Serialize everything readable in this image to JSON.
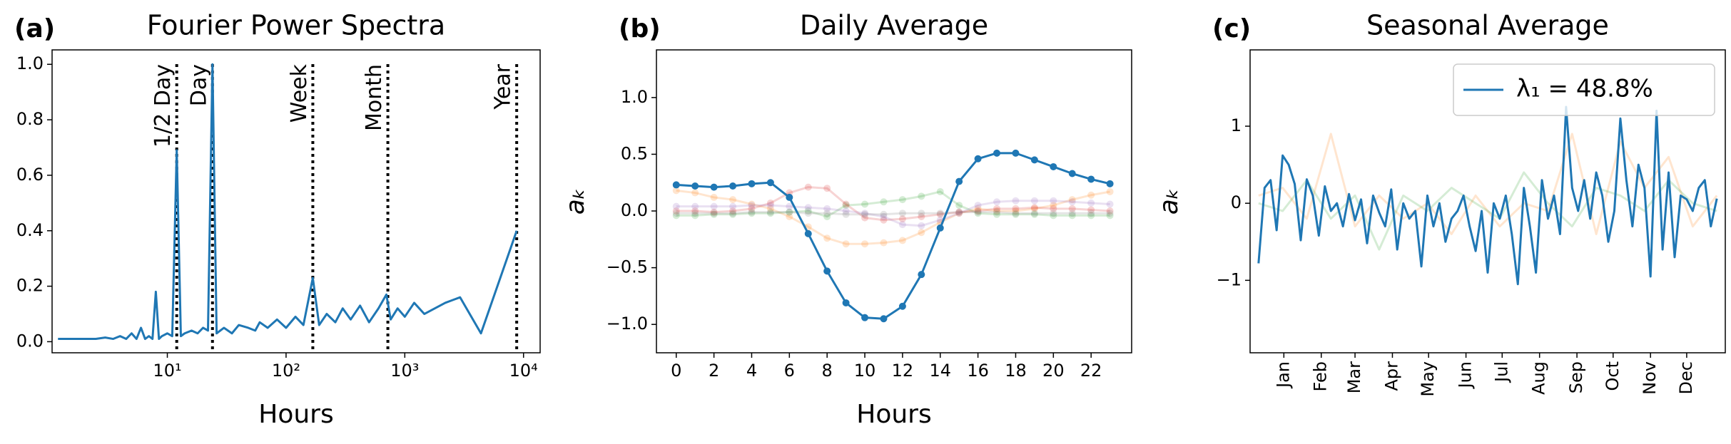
{
  "chart_data": [
    {
      "type": "line",
      "panel_label": "(a)",
      "title": "Fourier Power Spectra",
      "x_label": "Hours",
      "xlog": true,
      "xlim": [
        1.07,
        13800
      ],
      "ylim": [
        -0.04,
        1.052
      ],
      "xticks": [
        {
          "value": 10,
          "label": "10¹"
        },
        {
          "value": 100,
          "label": "10²"
        },
        {
          "value": 1000,
          "label": "10³"
        },
        {
          "value": 10000,
          "label": "10⁴"
        }
      ],
      "yticks": [
        {
          "value": 0,
          "label": "0.0"
        },
        0.2,
        0.4,
        0.6,
        0.8,
        {
          "value": 1,
          "label": "1.0"
        }
      ],
      "annotations": [
        {
          "x": 12,
          "label": "1/2 Day"
        },
        {
          "x": 24,
          "label": "Day"
        },
        {
          "x": 168,
          "label": "Week"
        },
        {
          "x": 720,
          "label": "Month"
        },
        {
          "x": 8760,
          "label": "Year"
        }
      ],
      "series": [
        {
          "color": "#1f77b4",
          "x": [
            1.2,
            1.5,
            2,
            2.5,
            3,
            3.5,
            4,
            4.5,
            5,
            5.5,
            6,
            6.5,
            7,
            7.5,
            8,
            8.5,
            9,
            10,
            11,
            12,
            13,
            14,
            16,
            18,
            20,
            22,
            24,
            26,
            30,
            35,
            40,
            48,
            55,
            60,
            70,
            84,
            100,
            120,
            140,
            168,
            190,
            220,
            260,
            300,
            350,
            420,
            500,
            600,
            700,
            760,
            870,
            1000,
            1200,
            1460,
            2190,
            2920,
            4380,
            8760
          ],
          "values": [
            0.01,
            0.01,
            0.01,
            0.01,
            0.015,
            0.01,
            0.02,
            0.01,
            0.03,
            0.01,
            0.05,
            0.01,
            0.02,
            0.01,
            0.18,
            0.01,
            0.02,
            0.03,
            0.02,
            0.69,
            0.02,
            0.03,
            0.04,
            0.03,
            0.05,
            0.04,
            1.0,
            0.03,
            0.05,
            0.03,
            0.06,
            0.05,
            0.04,
            0.07,
            0.05,
            0.08,
            0.05,
            0.09,
            0.06,
            0.23,
            0.06,
            0.1,
            0.07,
            0.12,
            0.08,
            0.13,
            0.07,
            0.12,
            0.17,
            0.08,
            0.12,
            0.09,
            0.14,
            0.1,
            0.14,
            0.16,
            0.03,
            0.4
          ]
        }
      ]
    },
    {
      "type": "line",
      "panel_label": "(b)",
      "title": "Daily Average",
      "x_label": "Hours",
      "y_label": "aₖ",
      "xlim": [
        -1.05,
        24.15
      ],
      "ylim": [
        -1.25,
        1.42
      ],
      "x": [
        0,
        1,
        2,
        3,
        4,
        5,
        6,
        7,
        8,
        9,
        10,
        11,
        12,
        13,
        14,
        15,
        16,
        17,
        18,
        19,
        20,
        21,
        22,
        23
      ],
      "xticks": [
        0,
        2,
        4,
        6,
        8,
        10,
        12,
        14,
        16,
        18,
        20,
        22
      ],
      "yticks": [
        {
          "value": -1,
          "label": "−1.0"
        },
        {
          "value": -0.5,
          "label": "−0.5"
        },
        {
          "value": 0,
          "label": "0.0"
        },
        0.5,
        {
          "value": 1,
          "label": "1.0"
        }
      ],
      "series": [
        {
          "color": "#ff7f0e",
          "alpha": 0.2,
          "marker": true,
          "values": [
            0.18,
            0.16,
            0.12,
            0.1,
            0.06,
            0.02,
            -0.05,
            -0.14,
            -0.24,
            -0.29,
            -0.29,
            -0.28,
            -0.26,
            -0.19,
            -0.1,
            -0.02,
            0.02,
            0.0,
            0.0,
            0.02,
            0.05,
            0.1,
            0.14,
            0.17
          ]
        },
        {
          "color": "#2ca02c",
          "alpha": 0.2,
          "marker": true,
          "values": [
            -0.04,
            -0.04,
            -0.03,
            -0.03,
            -0.02,
            -0.02,
            -0.01,
            0.0,
            -0.05,
            0.05,
            0.06,
            0.08,
            0.1,
            0.13,
            0.17,
            0.05,
            -0.02,
            -0.03,
            -0.03,
            -0.03,
            -0.04,
            -0.04,
            -0.04,
            -0.04
          ]
        },
        {
          "color": "#d62728",
          "alpha": 0.2,
          "marker": true,
          "values": [
            0.0,
            0.0,
            -0.01,
            0.0,
            0.02,
            0.07,
            0.16,
            0.21,
            0.2,
            0.06,
            -0.06,
            -0.08,
            -0.07,
            -0.05,
            -0.03,
            -0.01,
            0.0,
            0.02,
            0.02,
            0.03,
            0.02,
            0.02,
            0.01,
            0.0
          ]
        },
        {
          "color": "#9467bd",
          "alpha": 0.2,
          "marker": true,
          "values": [
            0.04,
            0.04,
            0.04,
            0.04,
            0.05,
            0.05,
            0.04,
            0.03,
            0.02,
            0.0,
            -0.02,
            -0.05,
            -0.12,
            -0.13,
            -0.08,
            -0.02,
            0.05,
            0.08,
            0.09,
            0.09,
            0.09,
            0.08,
            0.07,
            0.06
          ]
        },
        {
          "color": "#7f7f7f",
          "alpha": 0.2,
          "marker": true,
          "values": [
            -0.02,
            -0.02,
            -0.02,
            -0.02,
            -0.01,
            -0.01,
            -0.01,
            -0.02,
            -0.02,
            -0.03,
            -0.03,
            -0.03,
            -0.02,
            -0.02,
            -0.02,
            -0.01,
            -0.01,
            -0.01,
            -0.02,
            -0.02,
            -0.02,
            -0.02,
            -0.02,
            -0.02
          ]
        },
        {
          "color": "#1f77b4",
          "marker": true,
          "values": [
            0.23,
            0.22,
            0.21,
            0.22,
            0.24,
            0.25,
            0.12,
            -0.2,
            -0.53,
            -0.81,
            -0.94,
            -0.95,
            -0.84,
            -0.56,
            -0.15,
            0.26,
            0.46,
            0.51,
            0.51,
            0.45,
            0.39,
            0.33,
            0.28,
            0.24
          ]
        }
      ]
    },
    {
      "type": "line",
      "panel_label": "(c)",
      "title": "Seasonal Average",
      "y_label": "aₖ",
      "xtick_rotation": -90,
      "legend": "upper right",
      "xlim": [
        -27,
        367
      ],
      "ylim": [
        -1.94,
        1.99
      ],
      "xticks": [
        {
          "value": 1,
          "label": "Jan"
        },
        {
          "value": 32,
          "label": "Feb"
        },
        {
          "value": 60,
          "label": "Mar"
        },
        {
          "value": 91,
          "label": "Apr"
        },
        {
          "value": 121,
          "label": "May"
        },
        {
          "value": 152,
          "label": "Jun"
        },
        {
          "value": 182,
          "label": "Jul"
        },
        {
          "value": 213,
          "label": "Aug"
        },
        {
          "value": 244,
          "label": "Sep"
        },
        {
          "value": 274,
          "label": "Oct"
        },
        {
          "value": 305,
          "label": "Nov"
        },
        {
          "value": 335,
          "label": "Dec"
        }
      ],
      "yticks": [
        {
          "value": -1,
          "label": "−1"
        },
        0,
        1
      ],
      "series": [
        {
          "color": "#ff7f0e",
          "alpha": 0.2,
          "x": [
            -20,
            0,
            20,
            40,
            60,
            80,
            100,
            120,
            140,
            160,
            180,
            200,
            220,
            240,
            260,
            280,
            300,
            320,
            340,
            360
          ],
          "values": [
            0.1,
            0.2,
            -0.2,
            0.9,
            -0.3,
            0.1,
            -0.2,
            0.0,
            -0.4,
            0.1,
            -0.3,
            0.0,
            -0.1,
            0.9,
            -0.4,
            0.8,
            0.2,
            0.6,
            -0.3,
            0.1
          ]
        },
        {
          "color": "#2ca02c",
          "alpha": 0.2,
          "x": [
            -20,
            0,
            20,
            40,
            60,
            80,
            100,
            120,
            140,
            160,
            180,
            200,
            220,
            240,
            260,
            280,
            300,
            320,
            340,
            360
          ],
          "values": [
            0.0,
            -0.1,
            0.3,
            -0.2,
            0.1,
            -0.6,
            0.1,
            -0.1,
            0.2,
            0.0,
            -0.2,
            0.4,
            0.0,
            -0.3,
            0.2,
            0.1,
            -0.1,
            0.3,
            0.0,
            -0.1
          ]
        },
        {
          "name": "λ₁ = 48.8%",
          "color": "#1f77b4",
          "x": [
            -20,
            -15,
            -10,
            -5,
            0,
            5,
            10,
            15,
            20,
            25,
            30,
            35,
            40,
            45,
            50,
            55,
            60,
            65,
            70,
            75,
            80,
            85,
            90,
            95,
            100,
            105,
            110,
            115,
            120,
            125,
            130,
            135,
            140,
            145,
            150,
            155,
            160,
            165,
            170,
            175,
            180,
            185,
            190,
            195,
            200,
            205,
            210,
            215,
            220,
            225,
            230,
            235,
            240,
            245,
            250,
            255,
            260,
            265,
            270,
            275,
            280,
            285,
            290,
            295,
            300,
            305,
            310,
            315,
            320,
            325,
            330,
            335,
            340,
            345,
            350,
            355,
            360
          ],
          "values": [
            -0.78,
            0.2,
            0.3,
            -0.35,
            0.62,
            0.5,
            0.25,
            -0.48,
            0.31,
            0.1,
            -0.42,
            0.22,
            -0.1,
            0.0,
            -0.3,
            0.12,
            -0.22,
            0.05,
            -0.52,
            0.1,
            -0.12,
            -0.3,
            0.18,
            -0.6,
            0.0,
            -0.2,
            -0.1,
            -0.82,
            0.1,
            -0.3,
            0.0,
            -0.5,
            -0.2,
            -0.1,
            0.1,
            -0.3,
            -0.62,
            -0.1,
            -0.9,
            0.0,
            -0.2,
            0.1,
            -0.4,
            -1.05,
            0.2,
            -0.3,
            -0.9,
            0.3,
            -0.2,
            0.1,
            -0.4,
            1.25,
            0.2,
            -0.1,
            0.3,
            -0.2,
            0.4,
            0.1,
            -0.5,
            -0.1,
            1.1,
            0.3,
            -0.3,
            0.5,
            0.2,
            -0.95,
            1.2,
            -0.6,
            0.4,
            -0.7,
            0.1,
            0.05,
            -0.1,
            0.2,
            0.3,
            -0.3,
            0.06
          ]
        }
      ]
    }
  ]
}
